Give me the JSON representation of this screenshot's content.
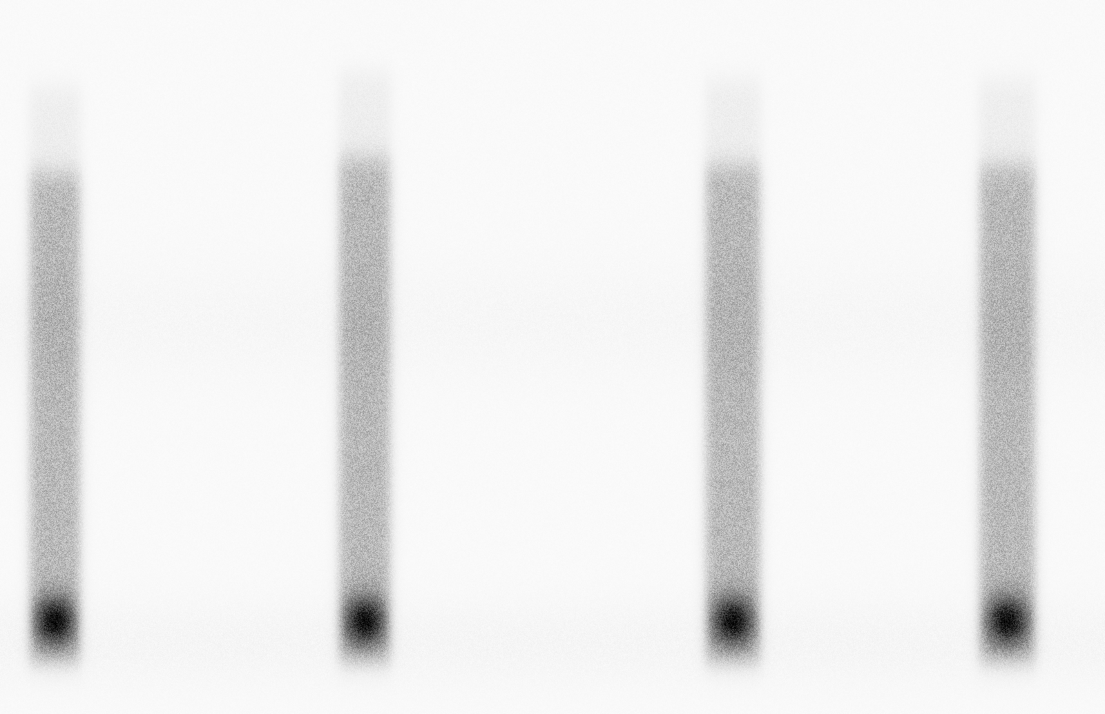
{
  "chart_data": {
    "type": "spectrogram",
    "color": "Greys",
    "tick_labels": false,
    "grid": false,
    "xlim": [
      0,
      1
    ],
    "ylim": [
      0,
      1
    ],
    "calls": [
      {
        "start": 0.026,
        "end": 0.073,
        "low": 0.07,
        "high": 0.76
      },
      {
        "start": 0.306,
        "end": 0.354,
        "low": 0.07,
        "high": 0.78
      },
      {
        "start": 0.638,
        "end": 0.689,
        "low": 0.07,
        "high": 0.77
      },
      {
        "start": 0.886,
        "end": 0.938,
        "low": 0.07,
        "high": 0.77
      }
    ]
  }
}
